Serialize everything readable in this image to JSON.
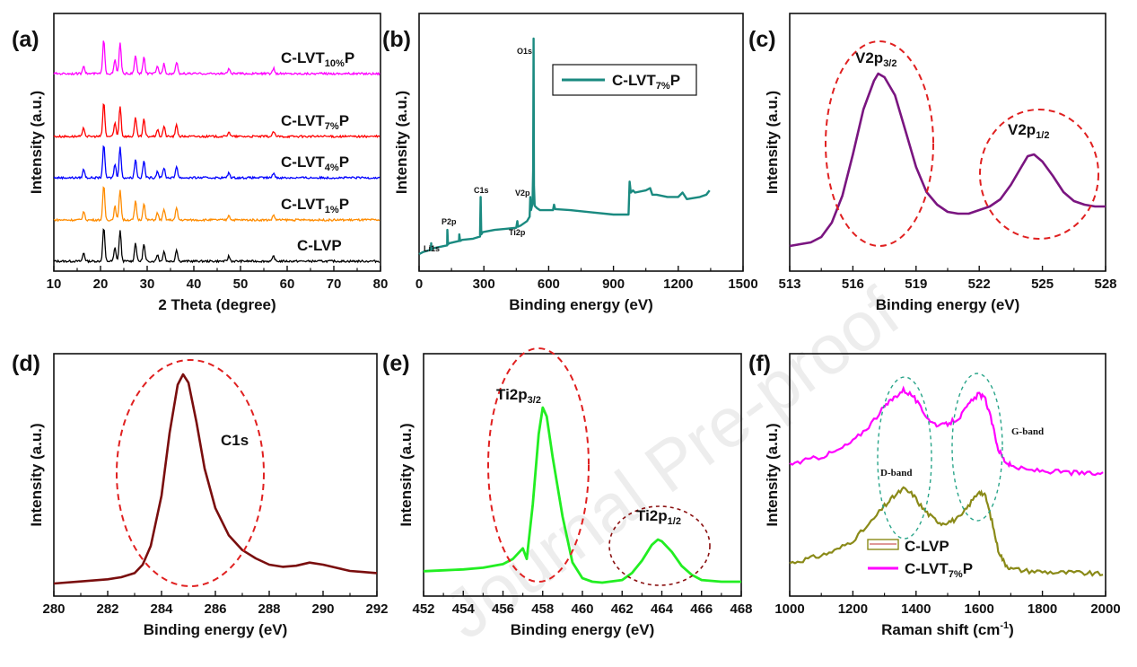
{
  "watermark": "Journal Pre-proof",
  "chart_data": [
    {
      "id": "a",
      "panel_label": "(a)",
      "type": "line",
      "xlabel": "2 Theta (degree)",
      "ylabel": "Intensity (a.u.)",
      "xlim": [
        10,
        80
      ],
      "xticks": [
        10,
        20,
        30,
        40,
        50,
        60,
        70,
        80
      ],
      "peaks_2theta": [
        16.4,
        20.7,
        23.1,
        24.2,
        27.5,
        29.3,
        32.2,
        33.6,
        36.3,
        47.5,
        57.1
      ],
      "series": [
        {
          "name": "C-LVP",
          "label_main": "C-LVP",
          "label_sub": "",
          "label_tail": "",
          "color": "#000000"
        },
        {
          "name": "C-LVT1%P",
          "label_main": "C-LVT",
          "label_sub": "1%",
          "label_tail": "P",
          "color": "#ff8c00"
        },
        {
          "name": "C-LVT4%P",
          "label_main": "C-LVT",
          "label_sub": "4%",
          "label_tail": "P",
          "color": "#0000ff"
        },
        {
          "name": "C-LVT7%P",
          "label_main": "C-LVT",
          "label_sub": "7%",
          "label_tail": "P",
          "color": "#ff0000"
        },
        {
          "name": "C-LVT10%P",
          "label_main": "C-LVT",
          "label_sub": "10%",
          "label_tail": "P",
          "color": "#ff00ff"
        }
      ]
    },
    {
      "id": "b",
      "panel_label": "(b)",
      "type": "line",
      "xlabel": "Binding energy (eV)",
      "ylabel": "Intensity (a.u.)",
      "xlim": [
        0,
        1500
      ],
      "xticks": [
        0,
        300,
        600,
        900,
        1200,
        1500
      ],
      "series": [
        {
          "name": "C-LVT7%P",
          "label_main": "C-LVT",
          "label_sub": "7%",
          "label_tail": "P",
          "color": "#1a8a80"
        }
      ],
      "x": [
        0,
        20,
        55,
        56,
        57,
        60,
        80,
        130,
        131,
        134,
        140,
        185,
        186,
        190,
        200,
        250,
        282,
        285,
        288,
        295,
        350,
        400,
        450,
        455,
        458,
        470,
        500,
        512,
        515,
        518,
        525,
        528,
        530,
        532,
        535,
        545,
        560,
        620,
        625,
        630,
        700,
        800,
        900,
        970,
        975,
        980,
        990,
        1000,
        1050,
        1070,
        1080,
        1100,
        1150,
        1200,
        1220,
        1240,
        1300,
        1330,
        1345
      ],
      "y": [
        0.02,
        0.03,
        0.04,
        0.07,
        0.04,
        0.045,
        0.05,
        0.06,
        0.13,
        0.065,
        0.07,
        0.08,
        0.11,
        0.08,
        0.085,
        0.09,
        0.1,
        0.28,
        0.11,
        0.12,
        0.13,
        0.135,
        0.14,
        0.17,
        0.145,
        0.15,
        0.17,
        0.19,
        0.28,
        0.22,
        0.25,
        0.4,
        1.0,
        0.33,
        0.24,
        0.23,
        0.22,
        0.22,
        0.245,
        0.225,
        0.22,
        0.21,
        0.2,
        0.2,
        0.35,
        0.3,
        0.31,
        0.3,
        0.31,
        0.32,
        0.29,
        0.29,
        0.28,
        0.28,
        0.3,
        0.27,
        0.28,
        0.29,
        0.31
      ],
      "annotations": [
        "Li1s",
        "P2p",
        "C1s",
        "Ti2p",
        "V2p",
        "O1s"
      ]
    },
    {
      "id": "c",
      "panel_label": "(c)",
      "type": "line",
      "xlabel": "Binding energy (eV)",
      "ylabel": "Intensity (a.u.)",
      "xlim": [
        513,
        528
      ],
      "xticks": [
        513,
        516,
        519,
        522,
        525,
        528
      ],
      "series": [
        {
          "name": "V2p",
          "color": "#7a1580"
        }
      ],
      "x": [
        513,
        514,
        514.5,
        515,
        515.5,
        516,
        516.5,
        517,
        517.2,
        517.5,
        518,
        518.5,
        519,
        519.5,
        520,
        520.5,
        521,
        521.5,
        522,
        522.5,
        523,
        523.5,
        524,
        524.3,
        524.6,
        525,
        525.5,
        526,
        526.5,
        527,
        527.5,
        528
      ],
      "y": [
        0.04,
        0.06,
        0.09,
        0.17,
        0.32,
        0.55,
        0.8,
        0.96,
        1.0,
        0.98,
        0.88,
        0.68,
        0.48,
        0.34,
        0.27,
        0.23,
        0.22,
        0.22,
        0.24,
        0.26,
        0.3,
        0.38,
        0.48,
        0.54,
        0.55,
        0.51,
        0.43,
        0.34,
        0.29,
        0.27,
        0.26,
        0.26
      ],
      "annotations": [
        {
          "main": "V2p",
          "sub": "3/2"
        },
        {
          "main": "V2p",
          "sub": "1/2"
        }
      ]
    },
    {
      "id": "d",
      "panel_label": "(d)",
      "type": "line",
      "xlabel": "Binding energy (eV)",
      "ylabel": "Intensity (a.u.)",
      "xlim": [
        280,
        292
      ],
      "xticks": [
        280,
        282,
        284,
        286,
        288,
        290,
        292
      ],
      "series": [
        {
          "name": "C1s",
          "color": "#7a0e0e"
        }
      ],
      "x": [
        280,
        281,
        282,
        282.5,
        283,
        283.3,
        283.6,
        284,
        284.3,
        284.6,
        284.8,
        285,
        285.3,
        285.6,
        286,
        286.5,
        287,
        287.5,
        288,
        288.5,
        289,
        289.5,
        290,
        290.5,
        291,
        291.5,
        292
      ],
      "y": [
        0.0,
        0.01,
        0.02,
        0.03,
        0.05,
        0.09,
        0.18,
        0.42,
        0.72,
        0.95,
        1.0,
        0.96,
        0.77,
        0.55,
        0.36,
        0.23,
        0.16,
        0.12,
        0.09,
        0.08,
        0.085,
        0.1,
        0.09,
        0.075,
        0.06,
        0.055,
        0.05
      ],
      "annotations": [
        "C1s"
      ]
    },
    {
      "id": "e",
      "panel_label": "(e)",
      "type": "line",
      "xlabel": "Binding energy (eV)",
      "ylabel": "Intensity (a.u.)",
      "xlim": [
        452,
        468
      ],
      "xticks": [
        452,
        454,
        456,
        458,
        460,
        462,
        464,
        466,
        468
      ],
      "series": [
        {
          "name": "Ti2p",
          "color": "#22ee22"
        }
      ],
      "x": [
        452,
        453,
        454,
        455,
        456,
        456.5,
        457,
        457.2,
        457.5,
        457.8,
        458,
        458.2,
        458.5,
        459,
        459.5,
        460,
        460.5,
        461,
        462,
        462.5,
        463,
        463.5,
        463.8,
        464,
        464.5,
        465,
        465.5,
        466,
        467,
        468
      ],
      "y": [
        0.07,
        0.075,
        0.08,
        0.09,
        0.11,
        0.14,
        0.2,
        0.14,
        0.45,
        0.85,
        1.0,
        0.95,
        0.72,
        0.38,
        0.12,
        0.03,
        0.01,
        0.005,
        0.02,
        0.06,
        0.13,
        0.22,
        0.25,
        0.24,
        0.18,
        0.1,
        0.05,
        0.02,
        0.01,
        0.01
      ],
      "annotations": [
        {
          "main": "Ti2p",
          "sub": "3/2"
        },
        {
          "main": "Ti2p",
          "sub": "1/2"
        }
      ]
    },
    {
      "id": "f",
      "panel_label": "(f)",
      "type": "line",
      "xlabel": "Raman shift (cm",
      "xlabel_sup": "-1",
      "xlabel_tail": ")",
      "ylabel": "Intensity (a.u.)",
      "xlim": [
        1000,
        2000
      ],
      "xticks": [
        1000,
        1200,
        1400,
        1600,
        1800,
        2000
      ],
      "x": [
        1000,
        1050,
        1100,
        1150,
        1200,
        1250,
        1300,
        1330,
        1360,
        1390,
        1420,
        1450,
        1480,
        1510,
        1540,
        1570,
        1600,
        1620,
        1640,
        1660,
        1680,
        1700,
        1750,
        1800,
        1850,
        1900,
        1950,
        2000
      ],
      "series": [
        {
          "name": "C-LVP",
          "label_main": "C-LVP",
          "label_sub": "",
          "label_tail": "",
          "color": "#8a8a18",
          "y": [
            0.06,
            0.08,
            0.1,
            0.13,
            0.18,
            0.26,
            0.36,
            0.41,
            0.45,
            0.42,
            0.35,
            0.3,
            0.27,
            0.28,
            0.3,
            0.37,
            0.44,
            0.41,
            0.28,
            0.13,
            0.06,
            0.03,
            0.02,
            0.015,
            0.01,
            0.01,
            0.005,
            0.0
          ]
        },
        {
          "name": "C-LVT7%P",
          "label_main": "C-LVT",
          "label_sub": "7%",
          "label_tail": "P",
          "color": "#ff00ff",
          "y": [
            0.58,
            0.6,
            0.62,
            0.65,
            0.7,
            0.78,
            0.88,
            0.93,
            0.97,
            0.94,
            0.86,
            0.8,
            0.78,
            0.8,
            0.83,
            0.9,
            0.95,
            0.92,
            0.8,
            0.66,
            0.6,
            0.57,
            0.55,
            0.545,
            0.54,
            0.535,
            0.53,
            0.53
          ]
        }
      ],
      "annotations": [
        "D-band",
        "G-band"
      ]
    }
  ]
}
